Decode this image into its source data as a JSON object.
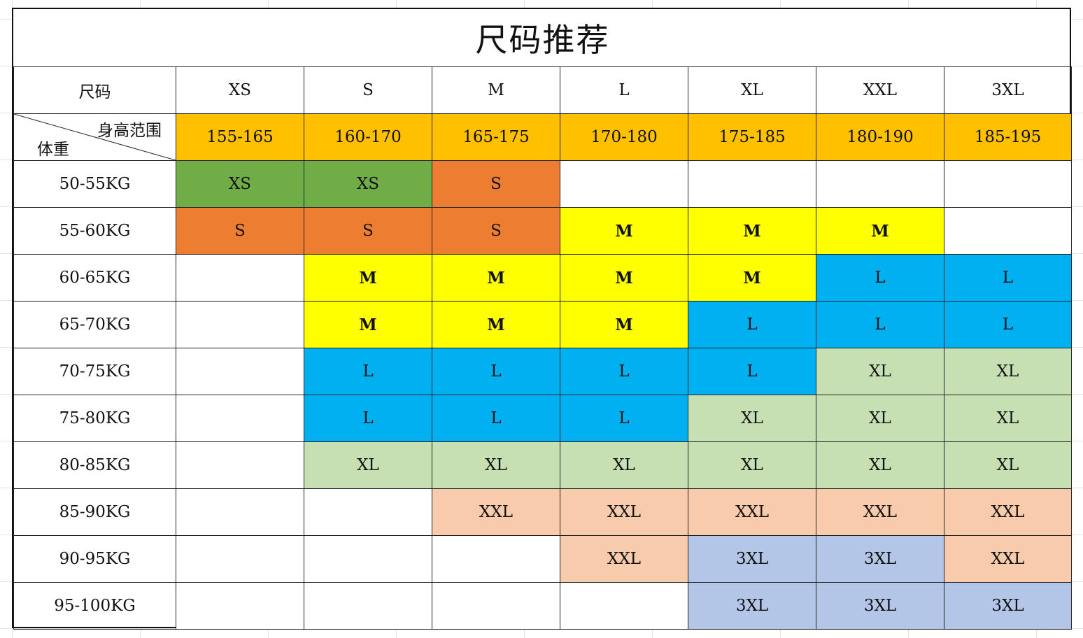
{
  "title": "尺码推荐",
  "header_row": {
    "label": "尺码",
    "sizes": [
      "XS",
      "S",
      "M",
      "L",
      "XL",
      "XXL",
      "3XL"
    ]
  },
  "corner": {
    "top_label": "身高范围",
    "bottom_label": "体重"
  },
  "heights": [
    "155-165",
    "160-170",
    "165-175",
    "170-180",
    "175-185",
    "180-190",
    "185-195"
  ],
  "rows": [
    {
      "weight": "50-55KG",
      "cells": [
        "XS",
        "XS",
        "S",
        "",
        "",
        "",
        ""
      ]
    },
    {
      "weight": "55-60KG",
      "cells": [
        "S",
        "S",
        "S",
        "M",
        "M",
        "M",
        ""
      ]
    },
    {
      "weight": "60-65KG",
      "cells": [
        "",
        "M",
        "M",
        "M",
        "M",
        "L",
        "L"
      ]
    },
    {
      "weight": "65-70KG",
      "cells": [
        "",
        "M",
        "M",
        "M",
        "L",
        "L",
        "L"
      ]
    },
    {
      "weight": "70-75KG",
      "cells": [
        "",
        "L",
        "L",
        "L",
        "L",
        "XL",
        "XL"
      ]
    },
    {
      "weight": "75-80KG",
      "cells": [
        "",
        "L",
        "L",
        "L",
        "XL",
        "XL",
        "XL"
      ]
    },
    {
      "weight": "80-85KG",
      "cells": [
        "",
        "XL",
        "XL",
        "XL",
        "XL",
        "XL",
        "XL"
      ]
    },
    {
      "weight": "85-90KG",
      "cells": [
        "",
        "",
        "XXL",
        "XXL",
        "XXL",
        "XXL",
        "XXL"
      ]
    },
    {
      "weight": "90-95KG",
      "cells": [
        "",
        "",
        "",
        "XXL",
        "3XL",
        "3XL",
        "XXL"
      ]
    },
    {
      "weight": "95-100KG",
      "cells": [
        "",
        "",
        "",
        "",
        "3XL",
        "3XL",
        "3XL"
      ]
    }
  ],
  "colors": {
    "height_band": "#ffc000",
    "XS": "#70ad47",
    "S": "#ed7d31",
    "M": "#ffff00",
    "L": "#00b0f0",
    "XL": "#c6e0b4",
    "XXL": "#f8cbad",
    "3XL": "#b4c6e7"
  }
}
